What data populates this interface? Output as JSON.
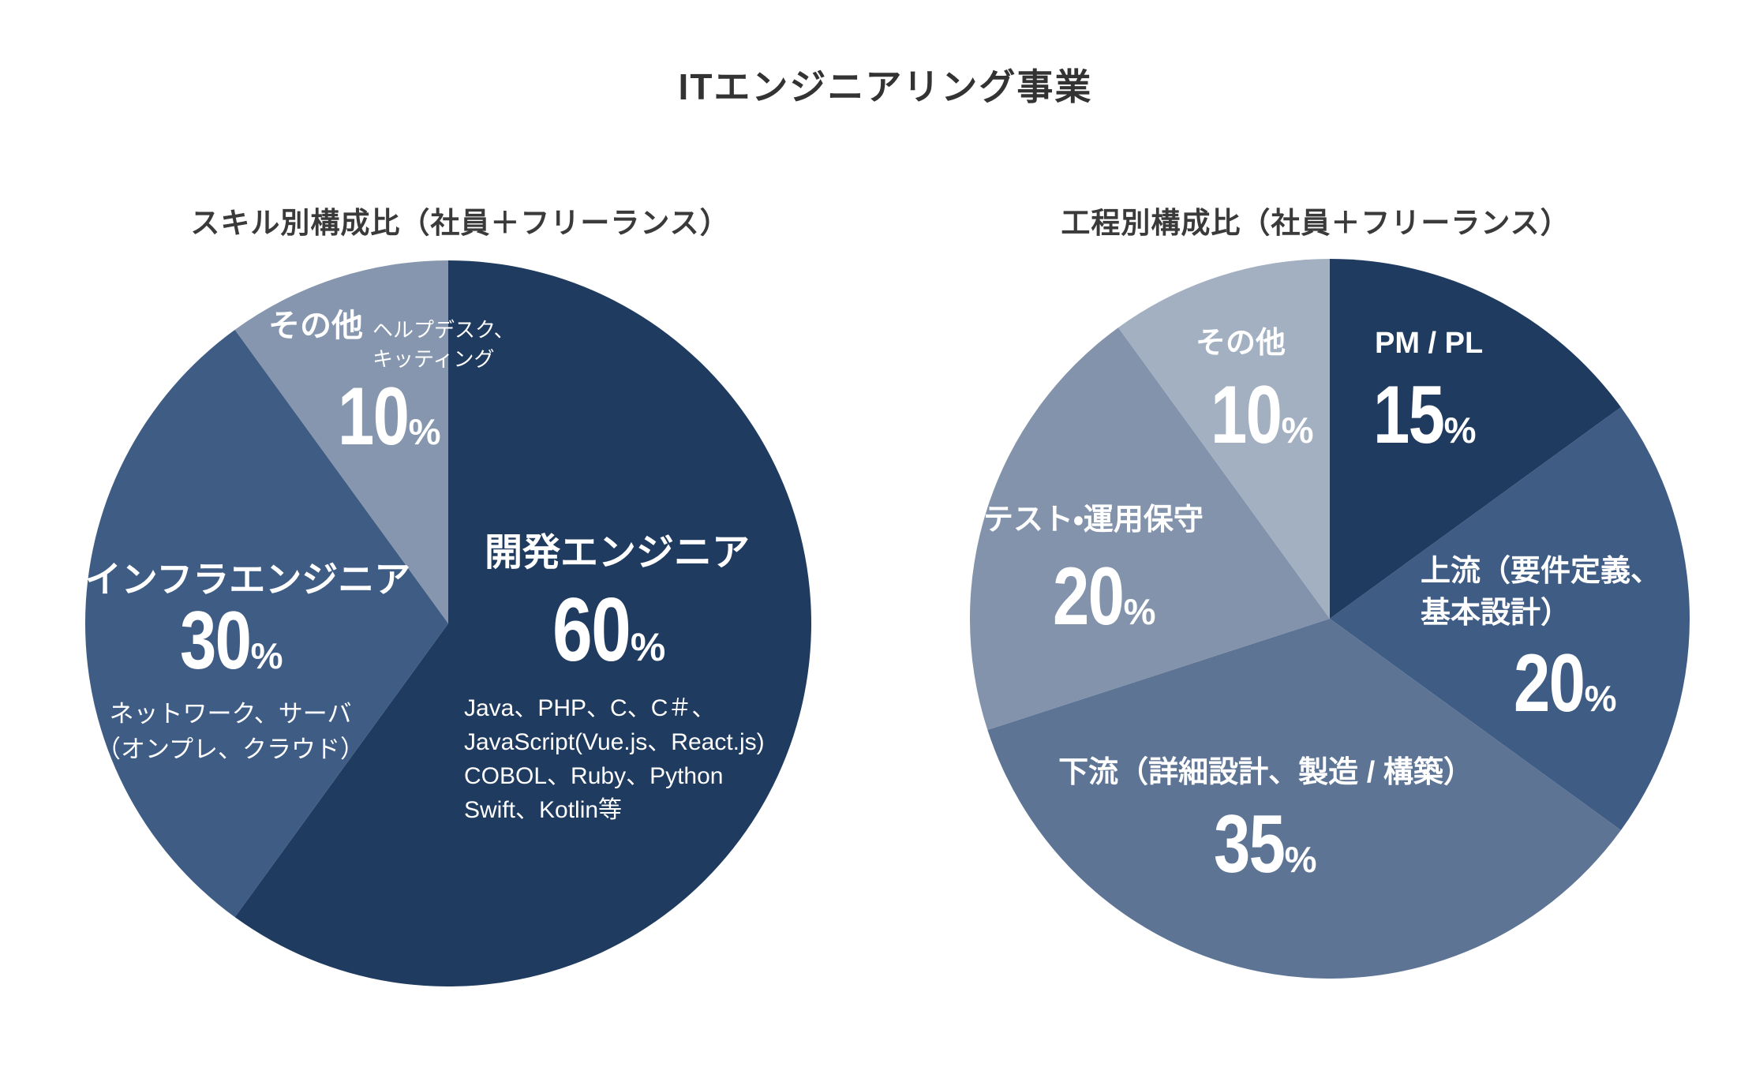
{
  "page": {
    "title": "ITエンジニアリング事業"
  },
  "left_chart": {
    "subtitle": "スキル別構成比（社員＋フリーランス）",
    "dev": {
      "name": "開発エンジニア",
      "value": "60",
      "unit": "%",
      "details": [
        "Java、PHP、C、C＃、",
        "JavaScript(Vue.js、React.js)",
        "COBOL、Ruby、Python",
        "Swift、Kotlin等"
      ]
    },
    "infra": {
      "name": "インフラエンジニア",
      "value": "30",
      "unit": "%",
      "details": [
        "ネットワーク、サーバ",
        "（オンプレ、クラウド）"
      ]
    },
    "other": {
      "name": "その他",
      "value": "10",
      "unit": "%",
      "details": [
        "ヘルプデスク、",
        "キッティング"
      ]
    }
  },
  "right_chart": {
    "subtitle": "工程別構成比（社員＋フリーランス）",
    "pm": {
      "name": "PM / PL",
      "value": "15",
      "unit": "%"
    },
    "upstream": {
      "name_lines": [
        "上流（要件定義、",
        "基本設計）"
      ],
      "value": "20",
      "unit": "%"
    },
    "downstream": {
      "name": "下流（詳細設計、製造 / 構築）",
      "value": "35",
      "unit": "%"
    },
    "test": {
      "name": "テスト・運用保守",
      "value": "20",
      "unit": "%"
    },
    "other": {
      "name": "その他",
      "value": "10",
      "unit": "%"
    }
  },
  "colors": {
    "navy": "#1f3b5f",
    "slate": "#3f5c84",
    "mid_blue": "#5d7495",
    "gray_blue": "#8293ab",
    "gray_blue_light": "#8596ae",
    "lightest": "#a3b0c2",
    "heading_text": "#333333",
    "background": "#ffffff"
  },
  "chart_data": [
    {
      "type": "pie",
      "title": "スキル別構成比（社員＋フリーランス）",
      "start_angle_deg": 0,
      "direction": "clockwise",
      "legend_position": "none",
      "slices": [
        {
          "id": "dev",
          "label": "開発エンジニア",
          "value": 60,
          "color": "#1f3b5f",
          "note": "Java、PHP、C、C＃、JavaScript(Vue.js、React.js) COBOL、Ruby、Python Swift、Kotlin等"
        },
        {
          "id": "infra",
          "label": "インフラエンジニア",
          "value": 30,
          "color": "#3f5c84",
          "note": "ネットワーク、サーバ（オンプレ、クラウド）"
        },
        {
          "id": "other",
          "label": "その他",
          "value": 10,
          "color": "#8596ae",
          "note": "ヘルプデスク、キッティング"
        }
      ]
    },
    {
      "type": "pie",
      "title": "工程別構成比（社員＋フリーランス）",
      "start_angle_deg": 0,
      "direction": "clockwise",
      "legend_position": "none",
      "slices": [
        {
          "id": "pm",
          "label": "PM / PL",
          "value": 15,
          "color": "#1f3b5f"
        },
        {
          "id": "upstream",
          "label": "上流（要件定義、基本設計）",
          "value": 20,
          "color": "#3f5c84"
        },
        {
          "id": "downstream",
          "label": "下流（詳細設計、製造 / 構築）",
          "value": 35,
          "color": "#5d7495"
        },
        {
          "id": "test",
          "label": "テスト・運用保守",
          "value": 20,
          "color": "#8293ab"
        },
        {
          "id": "other",
          "label": "その他",
          "value": 10,
          "color": "#a3b0c2"
        }
      ]
    }
  ]
}
